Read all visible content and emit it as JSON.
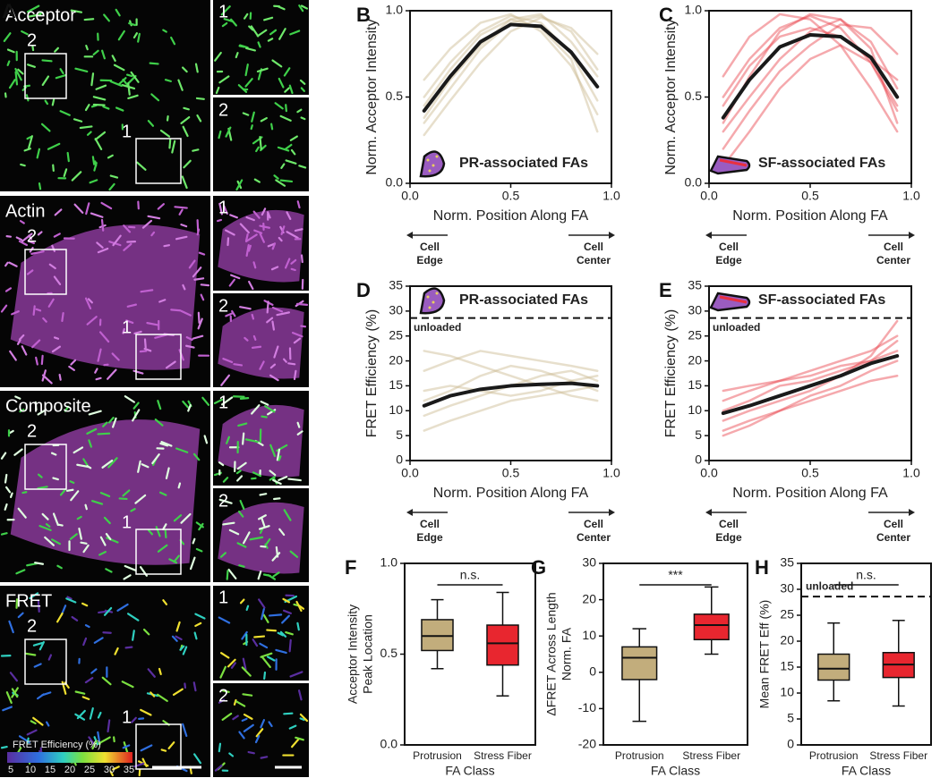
{
  "panel_a": {
    "letter": "A",
    "rows": [
      {
        "label": "Acceptor",
        "roi_labels": [
          "1",
          "2"
        ],
        "inset_labels": [
          "1",
          "2"
        ]
      },
      {
        "label": "Actin",
        "roi_labels": [
          "1",
          "2"
        ],
        "inset_labels": [
          "1",
          "2"
        ]
      },
      {
        "label": "Composite",
        "roi_labels": [
          "1",
          "2"
        ],
        "inset_labels": [
          "1",
          "2"
        ]
      },
      {
        "label": "FRET",
        "roi_labels": [
          "1",
          "2"
        ],
        "inset_labels": [
          "1",
          "2"
        ]
      }
    ],
    "colorbar": {
      "label": "FRET Efficiency (%)",
      "ticks": [
        5,
        10,
        15,
        20,
        25,
        30,
        35
      ]
    }
  },
  "chart_data": [
    {
      "type": "line",
      "panel": "B",
      "ylabel": "Norm. Acceptor Intensity",
      "xlabel": "Norm. Position Along FA",
      "edge_label": [
        "Cell",
        "Edge"
      ],
      "center_label": [
        "Cell",
        "Center"
      ],
      "inset_label": "PR-associated FAs",
      "x": [
        0.07,
        0.2,
        0.35,
        0.5,
        0.65,
        0.8,
        0.93
      ],
      "xlim": [
        0,
        1
      ],
      "ylim": [
        0,
        1
      ],
      "xticks": [
        {
          "value": 0,
          "label": "0.0"
        },
        0.5,
        {
          "value": 1,
          "label": "1.0"
        }
      ],
      "yticks": [
        {
          "value": 0,
          "label": "0.0"
        },
        0.5,
        {
          "value": 1,
          "label": "1.0"
        }
      ],
      "series": [
        {
          "color": "#c9b78f",
          "values": [
            0.5,
            0.7,
            0.88,
            0.97,
            0.93,
            0.75,
            0.48
          ]
        },
        {
          "color": "#c9b78f",
          "values": [
            0.35,
            0.55,
            0.78,
            0.93,
            0.97,
            0.88,
            0.66
          ]
        },
        {
          "color": "#c9b78f",
          "values": [
            0.6,
            0.78,
            0.93,
            0.98,
            0.88,
            0.68,
            0.4
          ]
        },
        {
          "color": "#c9b78f",
          "values": [
            0.28,
            0.48,
            0.7,
            0.88,
            0.96,
            0.9,
            0.75
          ]
        },
        {
          "color": "#c9b78f",
          "values": [
            0.45,
            0.66,
            0.86,
            0.95,
            0.9,
            0.72,
            0.3
          ]
        },
        {
          "color": "#c9b78f",
          "values": [
            0.38,
            0.6,
            0.8,
            0.95,
            0.98,
            0.82,
            0.62
          ]
        },
        {
          "color": "#1a1a1a",
          "values": [
            0.42,
            0.62,
            0.82,
            0.92,
            0.91,
            0.76,
            0.56
          ]
        }
      ]
    },
    {
      "type": "line",
      "panel": "C",
      "ylabel": "Norm. Acceptor Intensity",
      "xlabel": "Norm. Position Along FA",
      "edge_label": [
        "Cell",
        "Edge"
      ],
      "center_label": [
        "Cell",
        "Center"
      ],
      "inset_label": "SF-associated FAs",
      "x": [
        0.07,
        0.2,
        0.35,
        0.5,
        0.65,
        0.8,
        0.93
      ],
      "xlim": [
        0,
        1
      ],
      "ylim": [
        0,
        1
      ],
      "xticks": [
        {
          "value": 0,
          "label": "0.0"
        },
        0.5,
        {
          "value": 1,
          "label": "1.0"
        }
      ],
      "yticks": [
        {
          "value": 0,
          "label": "0.0"
        },
        0.5,
        {
          "value": 1,
          "label": "1.0"
        }
      ],
      "series": [
        {
          "color": "#e8404a",
          "values": [
            0.5,
            0.72,
            0.9,
            0.97,
            0.9,
            0.7,
            0.42
          ]
        },
        {
          "color": "#e8404a",
          "values": [
            0.2,
            0.42,
            0.65,
            0.8,
            0.92,
            0.9,
            0.75
          ]
        },
        {
          "color": "#e8404a",
          "values": [
            0.62,
            0.85,
            0.98,
            0.95,
            0.8,
            0.55,
            0.3
          ]
        },
        {
          "color": "#e8404a",
          "values": [
            0.3,
            0.5,
            0.72,
            0.88,
            0.95,
            0.82,
            0.55
          ]
        },
        {
          "color": "#e8404a",
          "values": [
            0.45,
            0.68,
            0.85,
            0.9,
            0.85,
            0.72,
            0.6
          ]
        },
        {
          "color": "#e8404a",
          "values": [
            0.1,
            0.3,
            0.55,
            0.72,
            0.8,
            0.7,
            0.45
          ]
        },
        {
          "color": "#e8404a",
          "values": [
            0.35,
            0.62,
            0.88,
            0.98,
            0.95,
            0.78,
            0.35
          ]
        },
        {
          "color": "#1a1a1a",
          "values": [
            0.38,
            0.6,
            0.79,
            0.86,
            0.85,
            0.73,
            0.5
          ]
        }
      ]
    },
    {
      "type": "line",
      "panel": "D",
      "ylabel": "FRET Efficiency (%)",
      "xlabel": "Norm. Position Along FA",
      "edge_label": [
        "Cell",
        "Edge"
      ],
      "center_label": [
        "Cell",
        "Center"
      ],
      "inset_label": "PR-associated FAs",
      "ref_line": 28.6,
      "ref_label": "unloaded",
      "x": [
        0.07,
        0.2,
        0.35,
        0.5,
        0.65,
        0.8,
        0.93
      ],
      "xlim": [
        0,
        1
      ],
      "ylim": [
        0,
        35
      ],
      "xticks": [
        {
          "value": 0,
          "label": "0.0"
        },
        0.5,
        {
          "value": 1,
          "label": "1.0"
        }
      ],
      "yticks": [
        0,
        5,
        10,
        15,
        20,
        25,
        30,
        35
      ],
      "series": [
        {
          "color": "#c9b78f",
          "values": [
            18,
            20,
            22,
            21,
            20,
            19,
            18
          ]
        },
        {
          "color": "#c9b78f",
          "values": [
            6,
            8,
            10,
            12,
            13,
            14,
            15
          ]
        },
        {
          "color": "#c9b78f",
          "values": [
            14,
            15,
            14,
            13,
            14,
            16,
            17
          ]
        },
        {
          "color": "#c9b78f",
          "values": [
            9,
            11,
            13,
            15,
            17,
            18,
            16
          ]
        },
        {
          "color": "#c9b78f",
          "values": [
            22,
            21,
            19,
            17,
            15,
            13,
            12
          ]
        },
        {
          "color": "#c9b78f",
          "values": [
            12,
            14,
            17,
            19,
            18,
            16,
            14
          ]
        },
        {
          "color": "#1a1a1a",
          "values": [
            11,
            13,
            14.3,
            15,
            15.3,
            15.5,
            15
          ]
        }
      ]
    },
    {
      "type": "line",
      "panel": "E",
      "ylabel": "FRET Efficiency (%)",
      "xlabel": "Norm. Position Along FA",
      "edge_label": [
        "Cell",
        "Edge"
      ],
      "center_label": [
        "Cell",
        "Center"
      ],
      "inset_label": "SF-associated FAs",
      "ref_line": 28.6,
      "ref_label": "unloaded",
      "x": [
        0.07,
        0.2,
        0.35,
        0.5,
        0.65,
        0.8,
        0.93
      ],
      "xlim": [
        0,
        1
      ],
      "ylim": [
        0,
        35
      ],
      "xticks": [
        {
          "value": 0,
          "label": "0.0"
        },
        0.5,
        {
          "value": 1,
          "label": "1.0"
        }
      ],
      "yticks": [
        0,
        5,
        10,
        15,
        20,
        25,
        30,
        35
      ],
      "series": [
        {
          "color": "#e8404a",
          "values": [
            6,
            8,
            10,
            13,
            15,
            18,
            20
          ]
        },
        {
          "color": "#e8404a",
          "values": [
            12,
            14,
            16,
            18,
            20,
            22,
            25
          ]
        },
        {
          "color": "#e8404a",
          "values": [
            8,
            10,
            12,
            14,
            17,
            21,
            28
          ]
        },
        {
          "color": "#e8404a",
          "values": [
            14,
            15,
            16,
            17,
            19,
            20,
            22
          ]
        },
        {
          "color": "#e8404a",
          "values": [
            5,
            7,
            10,
            12,
            14,
            16,
            17
          ]
        },
        {
          "color": "#e8404a",
          "values": [
            10,
            12,
            15,
            16,
            18,
            20,
            24
          ]
        },
        {
          "color": "#1a1a1a",
          "values": [
            9.5,
            11,
            13,
            15,
            17,
            19.5,
            21
          ]
        }
      ]
    },
    {
      "type": "box",
      "panel": "F",
      "ylabel": [
        "Acceptor Intensity",
        "Peak Location"
      ],
      "xlabel": "FA Class",
      "categories": [
        "Protrusion",
        "Stress Fiber"
      ],
      "colors": [
        "#c2ad7c",
        "#e8262f"
      ],
      "significance": "n.s.",
      "ylim": [
        0,
        1
      ],
      "yticks": [
        {
          "value": 0,
          "label": "0.0"
        },
        0.5,
        {
          "value": 1,
          "label": "1.0"
        }
      ],
      "boxes": [
        {
          "min": 0.42,
          "q1": 0.52,
          "median": 0.6,
          "q3": 0.69,
          "max": 0.8
        },
        {
          "min": 0.27,
          "q1": 0.44,
          "median": 0.56,
          "q3": 0.66,
          "max": 0.84
        }
      ]
    },
    {
      "type": "box",
      "panel": "G",
      "ylabel": [
        "ΔFRET Across Length",
        "Norm. FA"
      ],
      "xlabel": "FA Class",
      "categories": [
        "Protrusion",
        "Stress Fiber"
      ],
      "colors": [
        "#c2ad7c",
        "#e8262f"
      ],
      "significance": "***",
      "ylim": [
        -20,
        30
      ],
      "yticks": [
        -20,
        -10,
        0,
        10,
        20,
        30
      ],
      "boxes": [
        {
          "min": -13.5,
          "q1": -2,
          "median": 4,
          "q3": 7,
          "max": 12
        },
        {
          "min": 5,
          "q1": 9,
          "median": 13,
          "q3": 16,
          "max": 23.5
        }
      ]
    },
    {
      "type": "box",
      "panel": "H",
      "ylabel": [
        "Mean FRET Eff (%)"
      ],
      "xlabel": "FA Class",
      "categories": [
        "Protrusion",
        "Stress Fiber"
      ],
      "colors": [
        "#c2ad7c",
        "#e8262f"
      ],
      "significance": "n.s.",
      "ref_line": 28.6,
      "ref_label": "unloaded",
      "ylim": [
        0,
        35
      ],
      "yticks": [
        0,
        5,
        10,
        15,
        20,
        25,
        30,
        35
      ],
      "boxes": [
        {
          "min": 8.5,
          "q1": 12.5,
          "median": 14.7,
          "q3": 17.5,
          "max": 23.5
        },
        {
          "min": 7.5,
          "q1": 13,
          "median": 15.5,
          "q3": 17.8,
          "max": 24
        }
      ]
    }
  ]
}
